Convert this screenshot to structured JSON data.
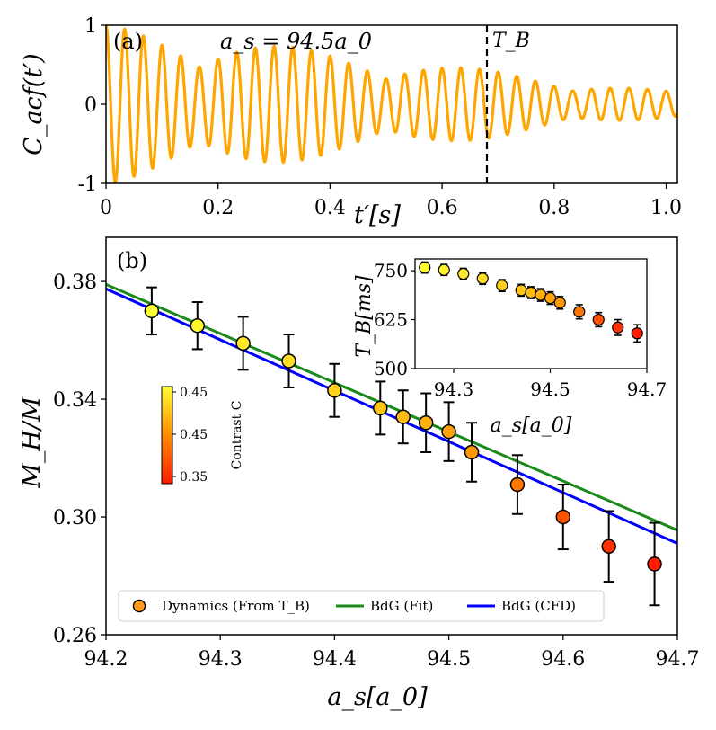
{
  "chart_data": [
    {
      "panel": "a",
      "type": "line",
      "panel_label": "(a)",
      "annotation": "a_s = 94.5a_0",
      "marker_label": "T_B",
      "marker_x": 0.68,
      "xlabel": "t′[s]",
      "ylabel": "C_acf(t′)",
      "xlim": [
        0,
        1.02
      ],
      "ylim": [
        -1,
        1
      ],
      "xticks": [
        "0",
        "0.2",
        "0.4",
        "0.6",
        "0.8",
        "1.0"
      ],
      "yticks": [
        "1",
        "0",
        "-1"
      ],
      "line_color": "#ffa500",
      "series": {
        "name": "C_acf",
        "decay_start": 1.0,
        "decay_end": 0.15,
        "frequency_hz": 30,
        "beat_hz": 3.0
      }
    },
    {
      "panel": "b",
      "type": "scatter",
      "panel_label": "(b)",
      "xlabel": "a_s[a_0]",
      "ylabel": "M_H/M",
      "xlim": [
        94.2,
        94.7
      ],
      "ylim": [
        0.26,
        0.395
      ],
      "xticks": [
        "94.2",
        "94.3",
        "94.4",
        "94.5",
        "94.6",
        "94.7"
      ],
      "yticks": [
        "0.26",
        "0.30",
        "0.34",
        "0.38"
      ],
      "points": {
        "name": "Dynamics (From T_B)",
        "x": [
          94.24,
          94.28,
          94.32,
          94.36,
          94.4,
          94.44,
          94.46,
          94.48,
          94.5,
          94.52,
          94.56,
          94.6,
          94.64,
          94.68
        ],
        "y": [
          0.37,
          0.365,
          0.359,
          0.353,
          0.343,
          0.337,
          0.334,
          0.332,
          0.329,
          0.322,
          0.311,
          0.3,
          0.29,
          0.284
        ],
        "err": [
          0.008,
          0.008,
          0.009,
          0.009,
          0.009,
          0.009,
          0.009,
          0.01,
          0.01,
          0.01,
          0.01,
          0.011,
          0.012,
          0.014
        ],
        "contrast": [
          0.45,
          0.445,
          0.44,
          0.435,
          0.43,
          0.425,
          0.42,
          0.415,
          0.41,
          0.405,
          0.39,
          0.375,
          0.36,
          0.35
        ]
      },
      "fit_lines": [
        {
          "name": "BdG (Fit)",
          "color": "#1a8a1a",
          "x": [
            94.2,
            94.7
          ],
          "y": [
            0.379,
            0.2955
          ]
        },
        {
          "name": "BdG (CFD)",
          "color": "#0000ff",
          "x": [
            94.2,
            94.7
          ],
          "y": [
            0.3775,
            0.291
          ]
        }
      ],
      "legend": {
        "placement": "bottom",
        "entries": [
          "Dynamics (From T_B)",
          "BdG (Fit)",
          "BdG (CFD)"
        ]
      },
      "colorbar": {
        "label": "Contrast C",
        "ticks": [
          "0.45",
          "0.45",
          "0.35"
        ]
      },
      "inset": {
        "type": "scatter",
        "xlabel": "a_s[a_0]",
        "ylabel": "T_B[ms]",
        "xlim": [
          94.22,
          94.7
        ],
        "ylim": [
          500,
          780
        ],
        "xticks": [
          "94.3",
          "94.5",
          "94.7"
        ],
        "yticks": [
          "500",
          "625",
          "750"
        ],
        "x": [
          94.24,
          94.28,
          94.32,
          94.36,
          94.4,
          94.44,
          94.46,
          94.48,
          94.5,
          94.52,
          94.56,
          94.6,
          94.64,
          94.68
        ],
        "y": [
          758,
          752,
          742,
          730,
          712,
          700,
          694,
          688,
          680,
          668,
          645,
          625,
          605,
          590
        ],
        "err": [
          14,
          14,
          14,
          15,
          15,
          15,
          15,
          16,
          16,
          16,
          18,
          18,
          20,
          22
        ]
      }
    }
  ]
}
